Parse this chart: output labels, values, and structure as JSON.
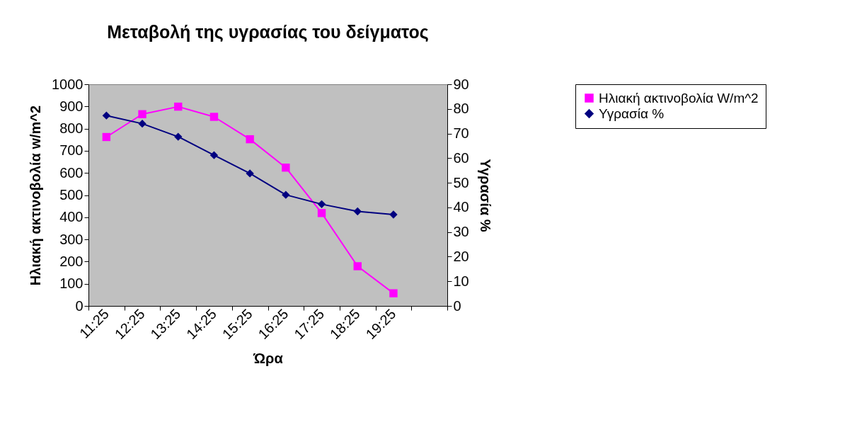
{
  "chart_data": {
    "type": "line",
    "title": "Μεταβολή της υγρασίας του δείγματος",
    "xlabel": "Ώρα",
    "ylabel": "Ηλιακή ακτινοβολία w/m^2",
    "y2label": "Υγρασία %",
    "categories": [
      "11:25",
      "12:25",
      "13:25",
      "14:25",
      "15:25",
      "16:25",
      "17:25",
      "18:25",
      "19:25",
      null
    ],
    "series": [
      {
        "name": "Ηλιακή ακτινοβολία W/m^2",
        "color": "#ff00ff",
        "marker": "square",
        "values": [
          762,
          865,
          899,
          853,
          752,
          624,
          419,
          179,
          57,
          null
        ]
      },
      {
        "name": "Υγρασία %",
        "color": "#000080",
        "marker": "diamond",
        "axis": "y2",
        "values": [
          77.3,
          74.0,
          68.7,
          61.2,
          53.8,
          45.1,
          41.3,
          38.4,
          37.1,
          null
        ]
      }
    ],
    "ylim": [
      0,
      1000
    ],
    "yticks": [
      0,
      100,
      200,
      300,
      400,
      500,
      600,
      700,
      800,
      900,
      1000
    ],
    "y2lim": [
      0,
      90
    ],
    "y2ticks": [
      0,
      10,
      20,
      30,
      40,
      50,
      60,
      70,
      80,
      90
    ],
    "grid": false,
    "legend": "right",
    "line_style": "solid"
  }
}
